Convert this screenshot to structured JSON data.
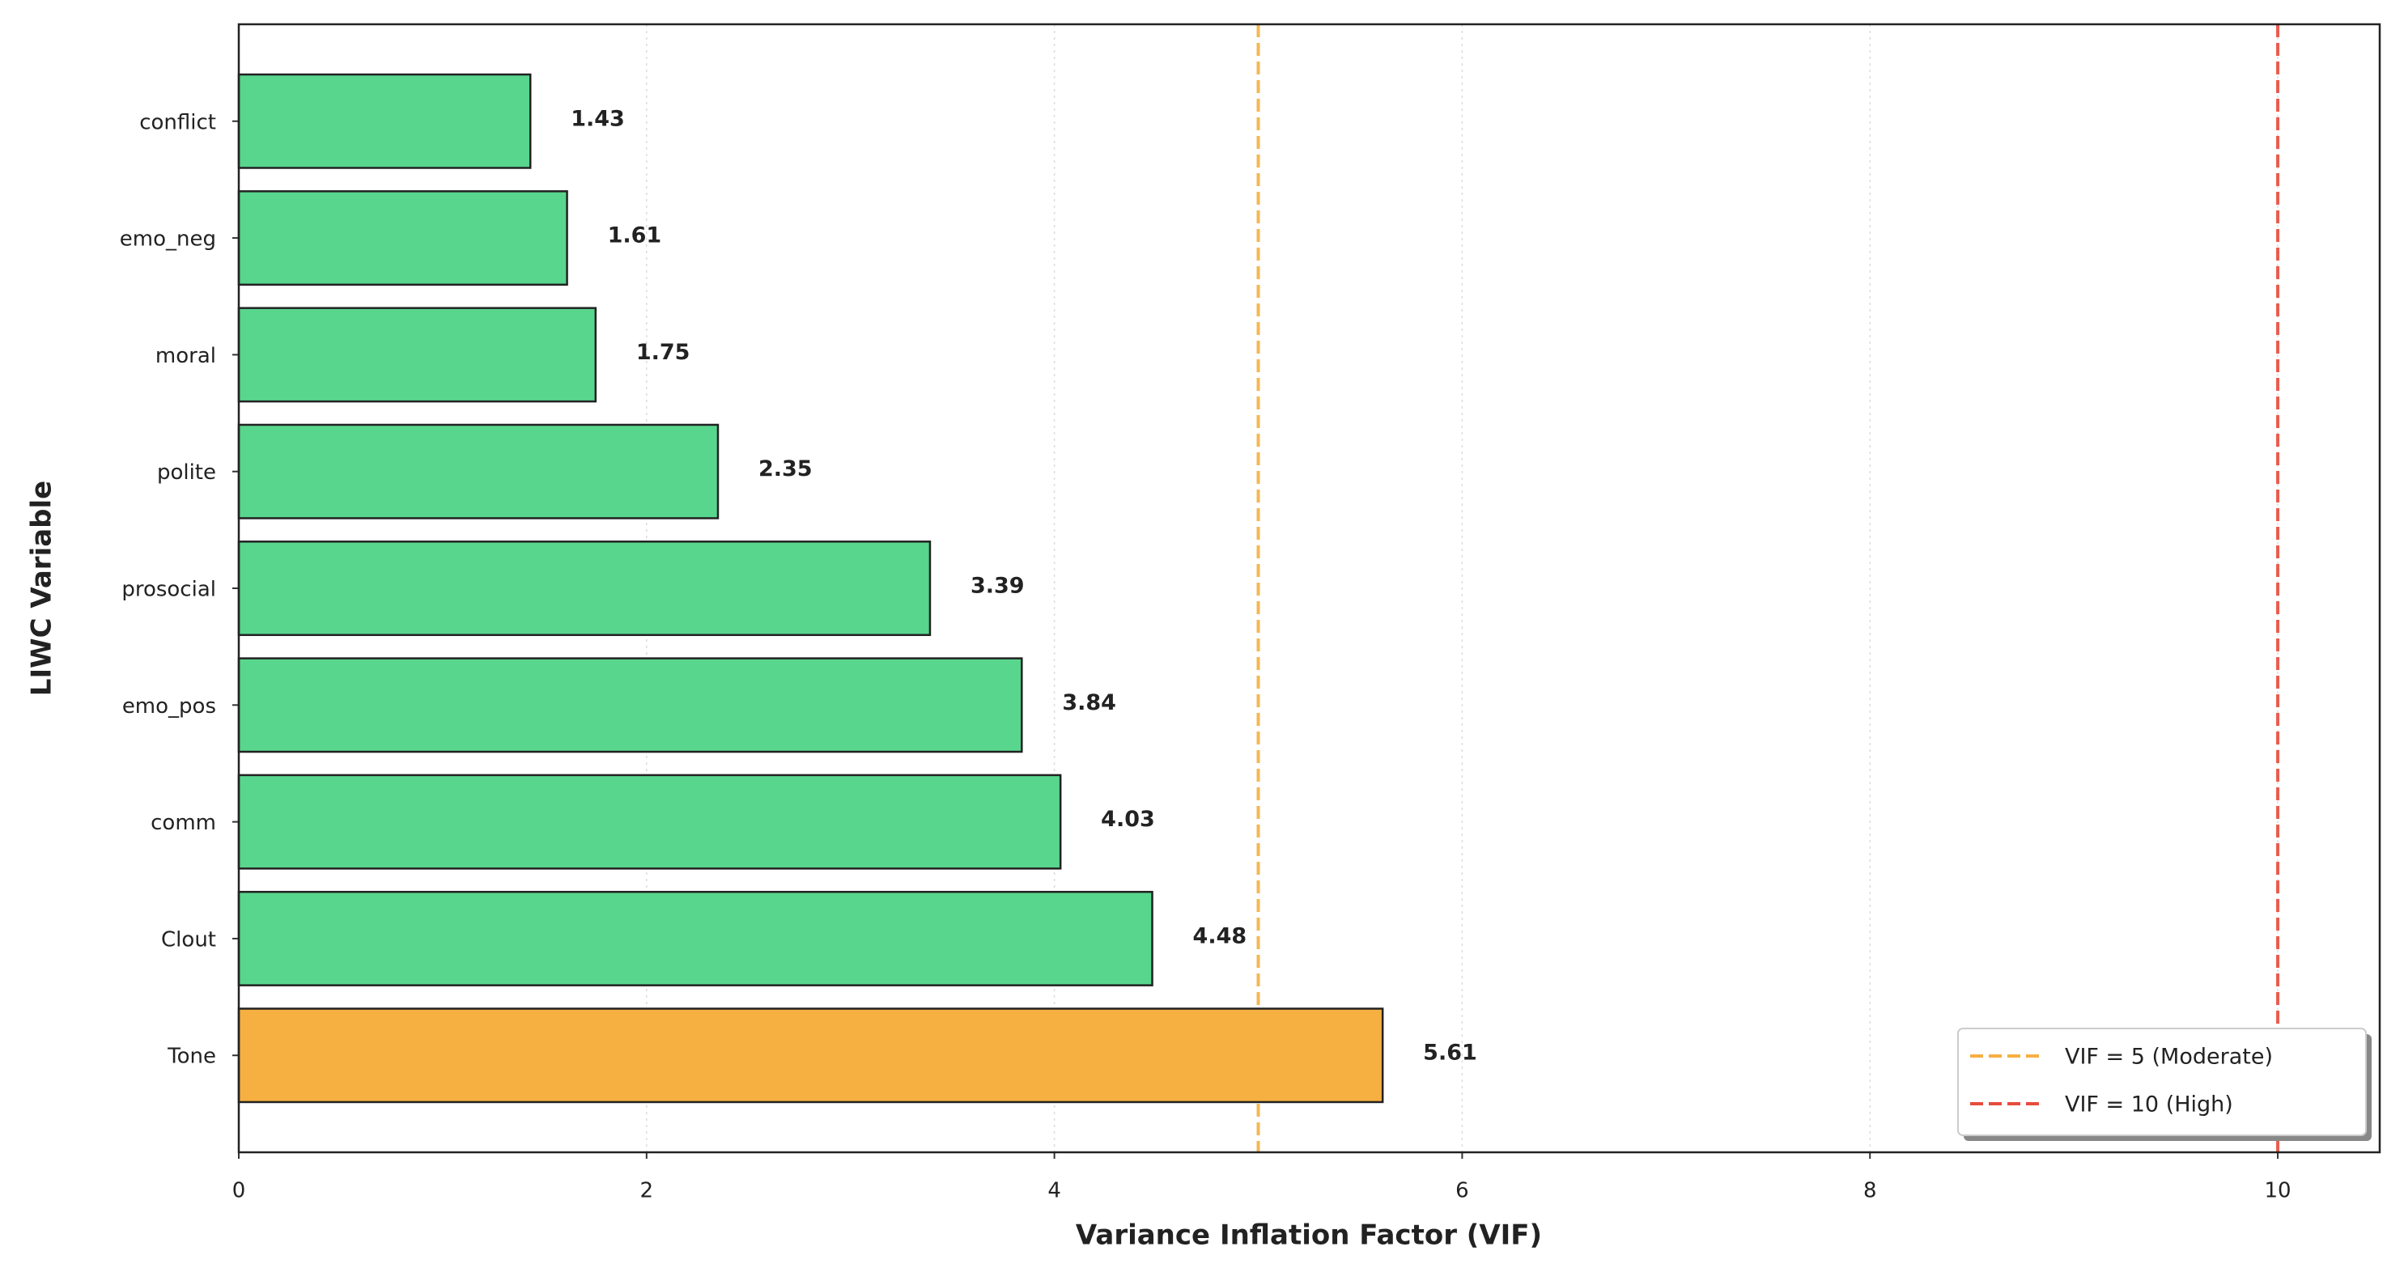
{
  "chart_data": {
    "type": "barh",
    "xlabel": "Variance Inflation Factor (VIF)",
    "ylabel": "LIWC Variable",
    "categories": [
      "conflict",
      "emo_neg",
      "moral",
      "polite",
      "prosocial",
      "emo_pos",
      "comm",
      "Clout",
      "Tone"
    ],
    "values": [
      1.43,
      1.61,
      1.75,
      2.35,
      3.39,
      3.84,
      4.03,
      4.48,
      5.61
    ],
    "colors": [
      "#58d68d",
      "#58d68d",
      "#58d68d",
      "#58d68d",
      "#58d68d",
      "#58d68d",
      "#58d68d",
      "#58d68d",
      "#f5b041"
    ],
    "xlim": [
      0,
      10.5
    ],
    "xticks": [
      0,
      2,
      4,
      6,
      8,
      10
    ],
    "grid": true,
    "reference_lines": [
      {
        "name": "VIF = 5 (Moderate)",
        "value": 5,
        "color": "#f5b041"
      },
      {
        "name": "VIF = 10 (High)",
        "value": 10,
        "color": "#e74c3c"
      }
    ],
    "legend": "lower right"
  }
}
